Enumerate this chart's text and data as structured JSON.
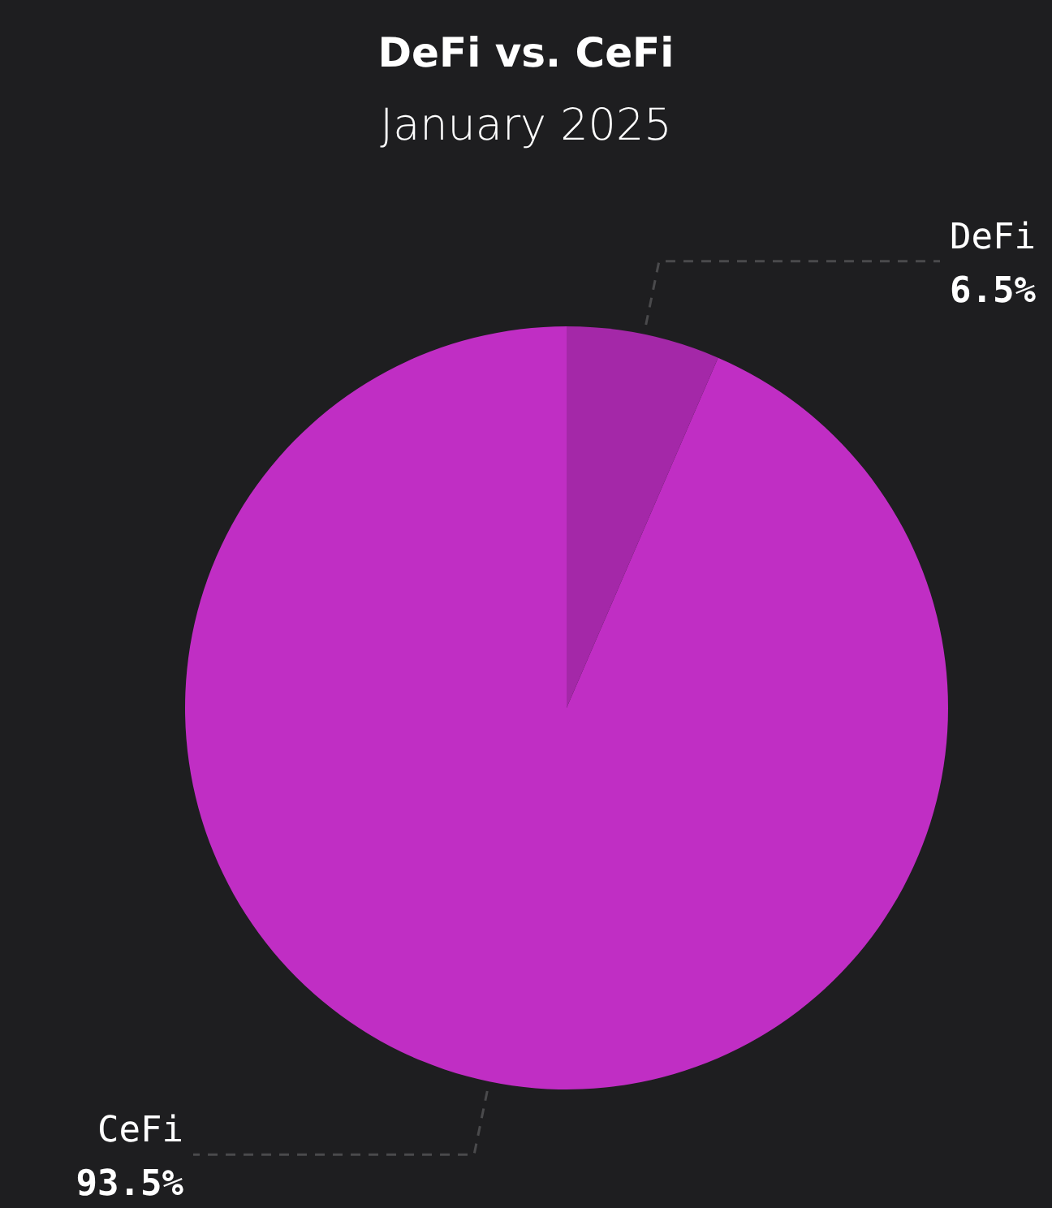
{
  "chart_data": {
    "type": "pie",
    "title": "DeFi vs. CeFi",
    "subtitle": "January 2025",
    "categories": [
      "DeFi",
      "CeFi"
    ],
    "values": [
      6.5,
      93.5
    ],
    "colors": [
      "#a428a8",
      "#c02ec4"
    ],
    "value_labels": [
      "6.5%",
      "93.5%"
    ]
  }
}
